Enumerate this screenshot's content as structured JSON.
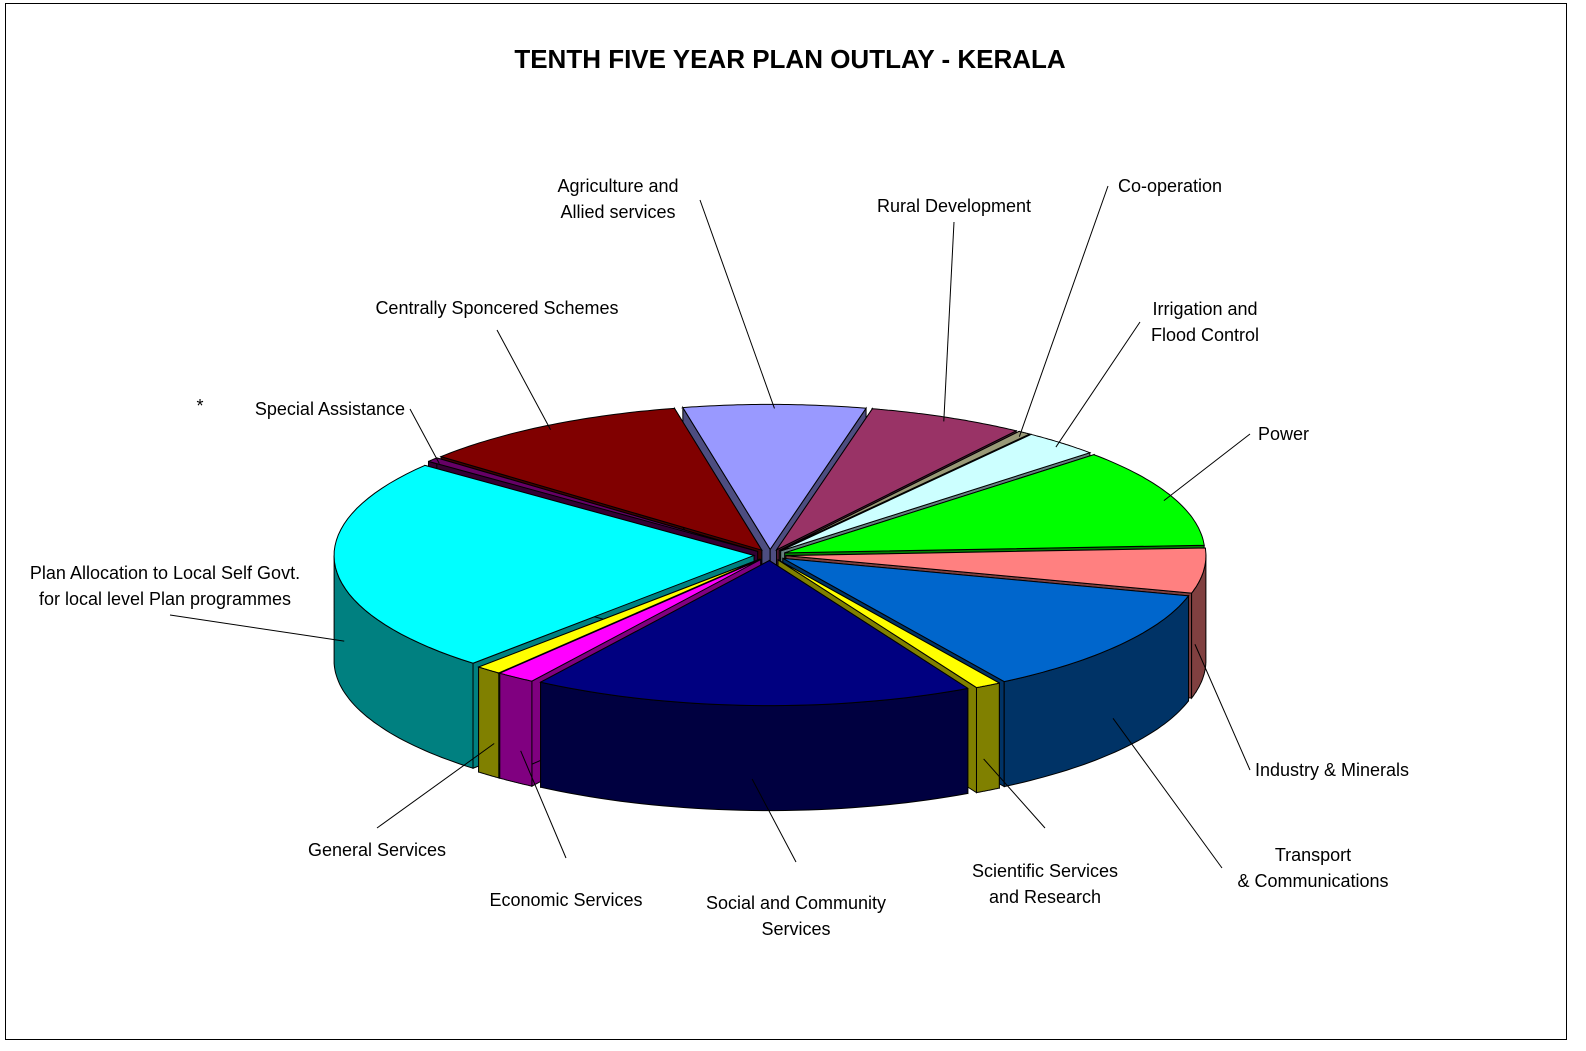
{
  "chart_data": {
    "type": "pie3d",
    "title": "TENTH FIVE YEAR PLAN OUTLAY - KERALA",
    "categories": [
      "Agriculture and\nAllied services",
      "Rural Development",
      "Co-operation",
      "Irrigation and\nFlood Control",
      "Power",
      "Industry & Minerals",
      "Transport\n& Communications",
      "Scientific Services\nand Research",
      "Social and Community\nServices",
      "Economic Services",
      "General Services",
      "Plan Allocation to Local Self Govt.\nfor local level Plan programmes",
      "Special Assistance",
      "Centrally Sponcered Schemes"
    ],
    "values": [
      7,
      6,
      0.5,
      3,
      11,
      5,
      12,
      1,
      17,
      1.5,
      1,
      24,
      0.5,
      10.5
    ],
    "colors": [
      "#9999ff",
      "#993366",
      "#999977",
      "#ccffff",
      "#00ff00",
      "#ff8080",
      "#0066cc",
      "#ffff00",
      "#000080",
      "#ff00ff",
      "#ffff00",
      "#00ffff",
      "#660066",
      "#800000"
    ],
    "footnote_marker": "*"
  }
}
